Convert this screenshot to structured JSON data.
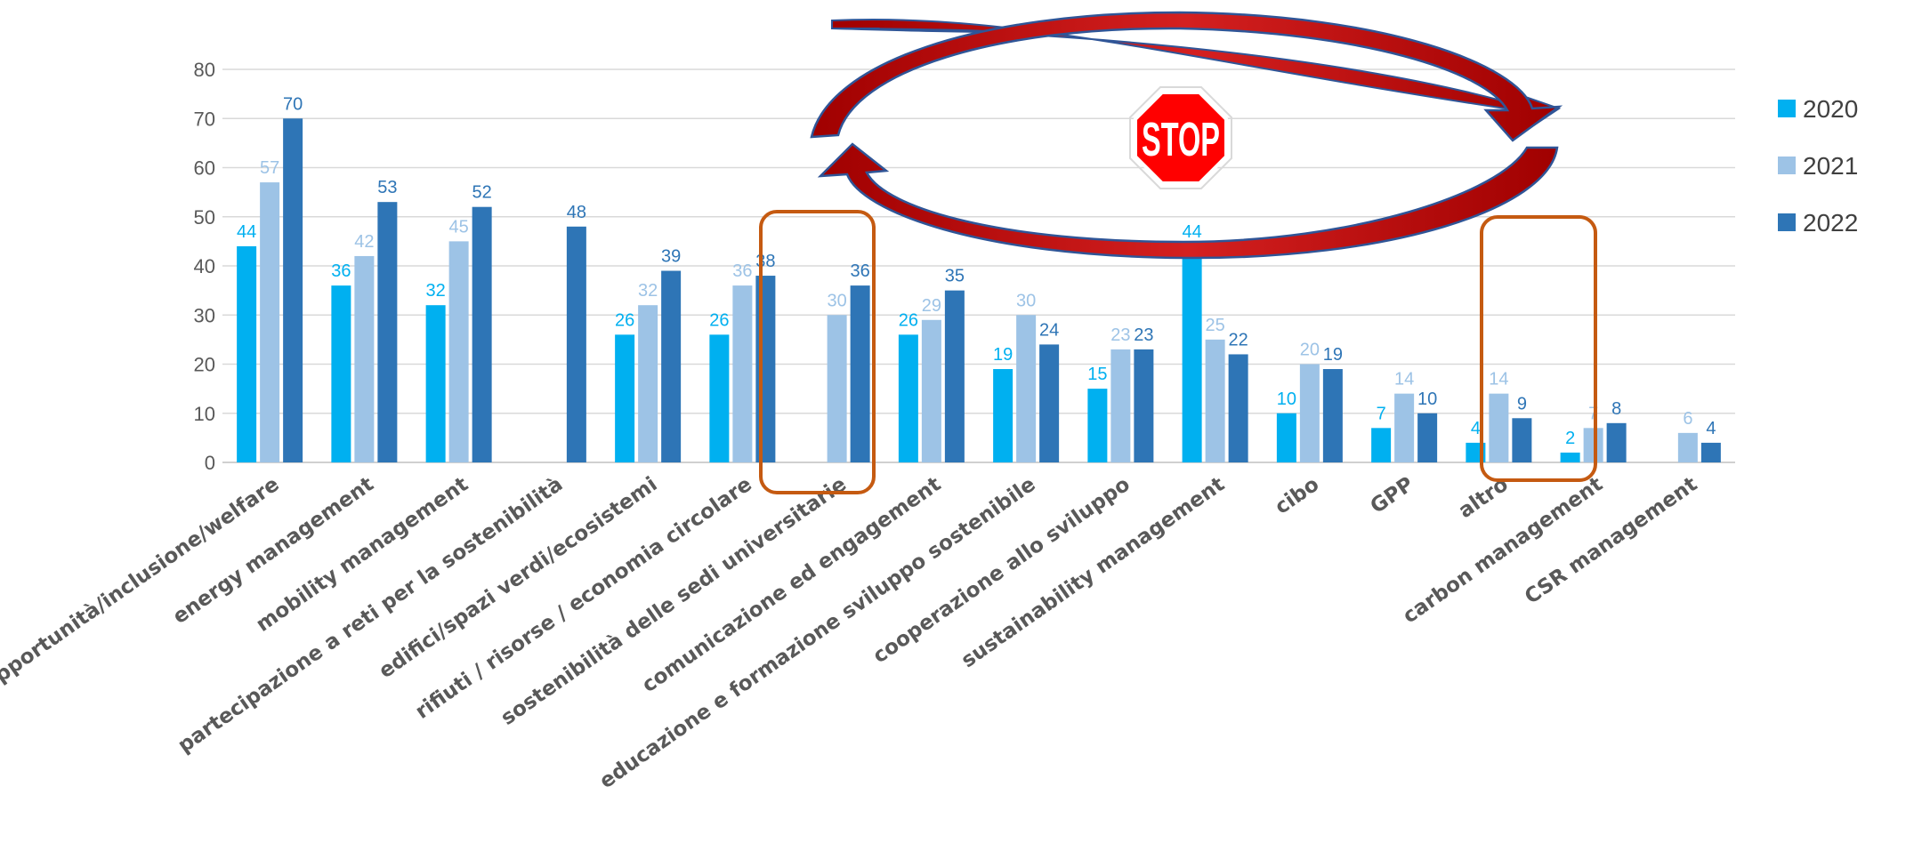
{
  "chart_data": {
    "type": "bar",
    "title": "",
    "xlabel": "",
    "ylabel": "",
    "ylim": [
      0,
      80
    ],
    "yticks": [
      0,
      10,
      20,
      30,
      40,
      50,
      60,
      70,
      80
    ],
    "grid": true,
    "legend_position": "top-right",
    "categories": [
      "pari opportunità/inclusione/welfare",
      "energy management",
      "mobility management",
      "partecipazione a reti per la sostenibilità",
      "edifici/spazi verdi/ecosistemi",
      "rifiuti / risorse / economia circolare",
      "sostenibilità delle sedi universitarie",
      "comunicazione ed engagement",
      "educazione e formazione sviluppo sostenibile",
      "cooperazione allo sviluppo",
      "sustainability management",
      "cibo",
      "GPP",
      "altro",
      "carbon management",
      "CSR management"
    ],
    "series": [
      {
        "name": "2020",
        "color": "#00b0f0",
        "values": [
          44,
          36,
          32,
          null,
          26,
          26,
          null,
          26,
          19,
          15,
          44,
          10,
          7,
          4,
          2,
          null
        ]
      },
      {
        "name": "2021",
        "color": "#9dc3e6",
        "values": [
          57,
          42,
          45,
          null,
          32,
          36,
          30,
          29,
          30,
          23,
          25,
          20,
          14,
          14,
          7,
          6
        ]
      },
      {
        "name": "2022",
        "color": "#2e75b6",
        "values": [
          70,
          53,
          52,
          48,
          39,
          38,
          36,
          35,
          24,
          23,
          22,
          19,
          10,
          9,
          8,
          4
        ]
      }
    ],
    "highlighted_categories": [
      "rifiuti / risorse / economia circolare",
      "GPP"
    ]
  },
  "overlay": {
    "stop_sign_text": "STOP",
    "stop_sign_color": "#ff0000",
    "arrow_color": "#c00000",
    "highlight_box_color": "#c55a11"
  }
}
